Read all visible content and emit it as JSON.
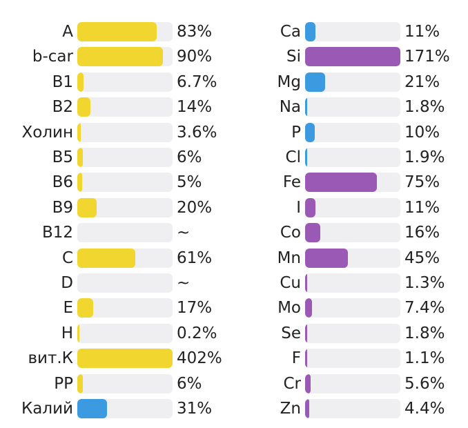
{
  "colors": {
    "vitamin": "#f2d630",
    "mineral_blue": "#3b9ae0",
    "mineral_purple": "#9b59b6",
    "track": "#efeff1"
  },
  "chart_data": {
    "type": "bar",
    "orientation": "horizontal",
    "scale_max_percent": 100,
    "columns": [
      {
        "items": [
          {
            "name": "A",
            "value": 83,
            "display": "83%",
            "color": "#f2d630"
          },
          {
            "name": "b-car",
            "value": 90,
            "display": "90%",
            "color": "#f2d630"
          },
          {
            "name": "B1",
            "value": 6.7,
            "display": "6.7%",
            "color": "#f2d630"
          },
          {
            "name": "B2",
            "value": 14,
            "display": "14%",
            "color": "#f2d630"
          },
          {
            "name": "Холин",
            "value": 3.6,
            "display": "3.6%",
            "color": "#f2d630"
          },
          {
            "name": "B5",
            "value": 6,
            "display": "6%",
            "color": "#f2d630"
          },
          {
            "name": "B6",
            "value": 5,
            "display": "5%",
            "color": "#f2d630"
          },
          {
            "name": "B9",
            "value": 20,
            "display": "20%",
            "color": "#f2d630"
          },
          {
            "name": "B12",
            "value": 0,
            "display": "~",
            "color": "#f2d630"
          },
          {
            "name": "C",
            "value": 61,
            "display": "61%",
            "color": "#f2d630"
          },
          {
            "name": "D",
            "value": 0,
            "display": "~",
            "color": "#f2d630"
          },
          {
            "name": "E",
            "value": 17,
            "display": "17%",
            "color": "#f2d630"
          },
          {
            "name": "H",
            "value": 0.2,
            "display": "0.2%",
            "color": "#f2d630"
          },
          {
            "name": "вит.К",
            "value": 402,
            "display": "402%",
            "color": "#f2d630"
          },
          {
            "name": "PP",
            "value": 6,
            "display": "6%",
            "color": "#f2d630"
          },
          {
            "name": "Калий",
            "value": 31,
            "display": "31%",
            "color": "#3b9ae0"
          }
        ]
      },
      {
        "items": [
          {
            "name": "Ca",
            "value": 11,
            "display": "11%",
            "color": "#3b9ae0"
          },
          {
            "name": "Si",
            "value": 171,
            "display": "171%",
            "color": "#9b59b6"
          },
          {
            "name": "Mg",
            "value": 21,
            "display": "21%",
            "color": "#3b9ae0"
          },
          {
            "name": "Na",
            "value": 1.8,
            "display": "1.8%",
            "color": "#3b9ae0"
          },
          {
            "name": "P",
            "value": 10,
            "display": "10%",
            "color": "#3b9ae0"
          },
          {
            "name": "Cl",
            "value": 1.9,
            "display": "1.9%",
            "color": "#3b9ae0"
          },
          {
            "name": "Fe",
            "value": 75,
            "display": "75%",
            "color": "#9b59b6"
          },
          {
            "name": "I",
            "value": 11,
            "display": "11%",
            "color": "#9b59b6"
          },
          {
            "name": "Co",
            "value": 16,
            "display": "16%",
            "color": "#9b59b6"
          },
          {
            "name": "Mn",
            "value": 45,
            "display": "45%",
            "color": "#9b59b6"
          },
          {
            "name": "Cu",
            "value": 1.3,
            "display": "1.3%",
            "color": "#9b59b6"
          },
          {
            "name": "Mo",
            "value": 7.4,
            "display": "7.4%",
            "color": "#9b59b6"
          },
          {
            "name": "Se",
            "value": 1.8,
            "display": "1.8%",
            "color": "#9b59b6"
          },
          {
            "name": "F",
            "value": 1.1,
            "display": "1.1%",
            "color": "#9b59b6"
          },
          {
            "name": "Cr",
            "value": 5.6,
            "display": "5.6%",
            "color": "#9b59b6"
          },
          {
            "name": "Zn",
            "value": 4.4,
            "display": "4.4%",
            "color": "#9b59b6"
          }
        ]
      }
    ]
  }
}
